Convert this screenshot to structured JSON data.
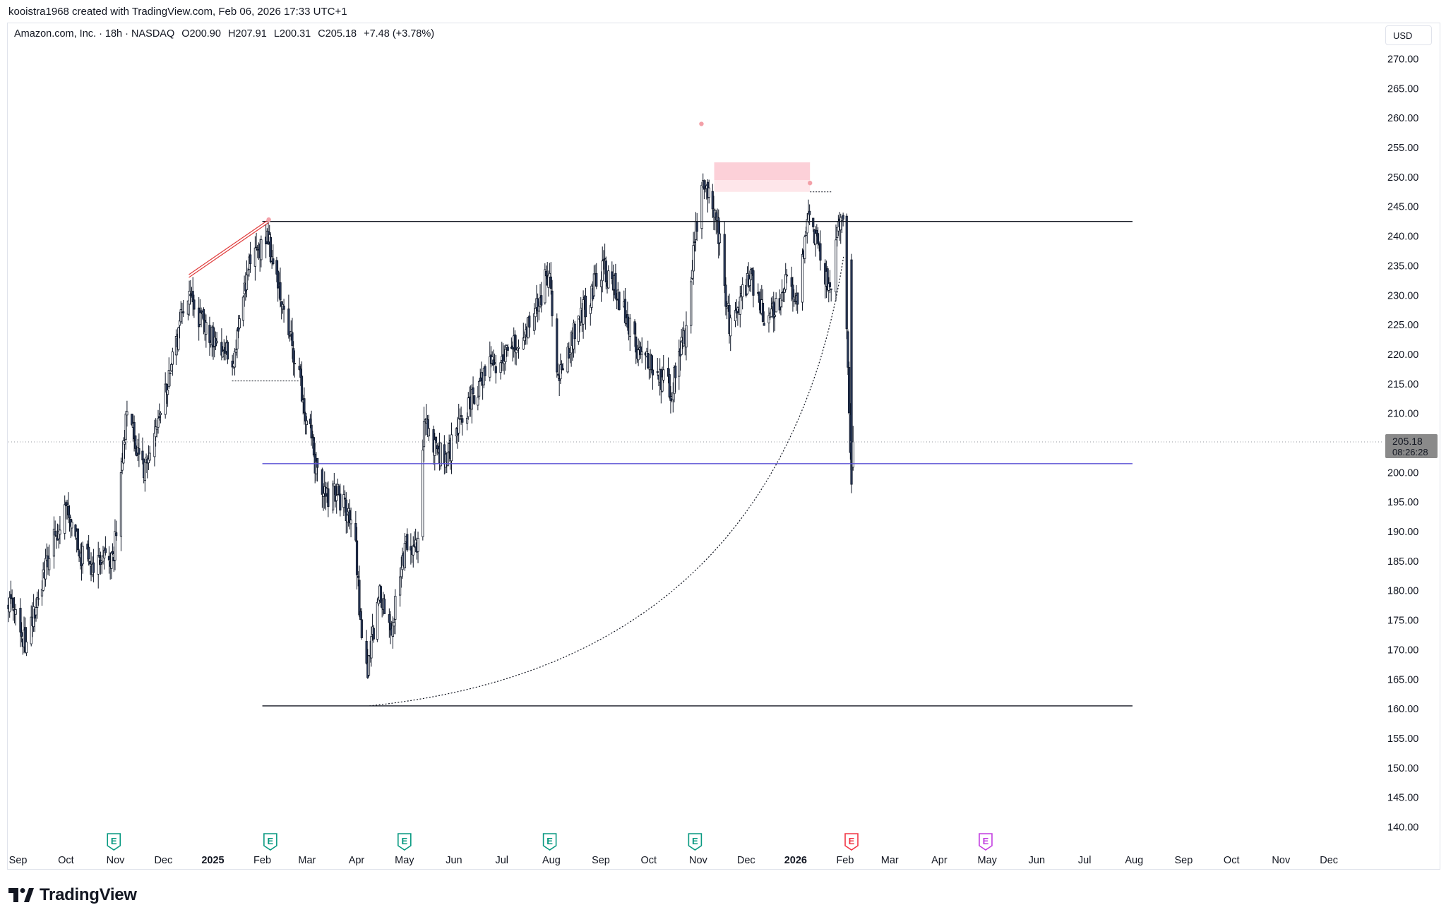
{
  "header": {
    "attribution": "kooistra1968 created with TradingView.com, Feb 06, 2026 17:33 UTC+1"
  },
  "legend": {
    "symbol": "Amazon.com, Inc. · 18h · NASDAQ",
    "open": "O200.90",
    "high": "H207.91",
    "low": "L200.31",
    "close": "C205.18",
    "change": "+7.48 (+3.78%)"
  },
  "currency_label": "USD",
  "price_badge": {
    "price": "205.18",
    "countdown": "08:26:28"
  },
  "brand": {
    "name": "TradingView"
  },
  "colors": {
    "up_candle": "#ffffff",
    "down_candle": "#2a3a5c",
    "candle_outline": "#0e1626",
    "level_line": "#131722",
    "support_line": "#5b52d6",
    "pivot_marker": "#f3a0a8",
    "zone_fill": "#fcc8d1",
    "earnings_past": "#089981",
    "earnings_next": "#f23645",
    "earnings_future": "#c33ee0",
    "badge_bg": "#8a8a8a"
  },
  "chart_data": {
    "type": "candlestick",
    "title": "",
    "xlabel": "",
    "ylabel": "",
    "ylim": [
      136,
      274
    ],
    "y_ticks": [
      "140.00",
      "145.00",
      "150.00",
      "155.00",
      "160.00",
      "165.00",
      "170.00",
      "175.00",
      "180.00",
      "185.00",
      "190.00",
      "195.00",
      "200.00",
      "205.00",
      "210.00",
      "215.00",
      "220.00",
      "225.00",
      "230.00",
      "235.00",
      "240.00",
      "245.00",
      "250.00",
      "255.00",
      "260.00",
      "265.00",
      "270.00"
    ],
    "x_ticks": [
      "Sep",
      "Oct",
      "Nov",
      "Dec",
      "2025",
      "Feb",
      "Mar",
      "Apr",
      "May",
      "Jun",
      "Jul",
      "Aug",
      "Sep",
      "Oct",
      "Nov",
      "Dec",
      "2026",
      "Feb",
      "Mar",
      "Apr",
      "May",
      "Jun",
      "Jul",
      "Aug",
      "Sep",
      "Oct",
      "Nov",
      "Dec"
    ],
    "bold_x_ticks": [
      "2025",
      "2026"
    ],
    "date_range": [
      "2024-08-26",
      "2026-12-31"
    ],
    "price_path": [
      [
        "2024-08-26",
        178
      ],
      [
        "2024-09-06",
        171
      ],
      [
        "2024-09-20",
        186
      ],
      [
        "2024-10-01",
        194
      ],
      [
        "2024-10-10",
        186
      ],
      [
        "2024-10-21",
        184
      ],
      [
        "2024-10-31",
        186
      ],
      [
        "2024-11-08",
        210
      ],
      [
        "2024-11-19",
        200
      ],
      [
        "2024-12-03",
        214
      ],
      [
        "2024-12-16",
        231
      ],
      [
        "2024-12-26",
        225
      ],
      [
        "2025-01-03",
        222
      ],
      [
        "2025-01-13",
        219
      ],
      [
        "2025-01-24",
        235
      ],
      [
        "2025-02-04",
        240
      ],
      [
        "2025-02-14",
        228
      ],
      [
        "2025-02-27",
        212
      ],
      [
        "2025-03-10",
        196
      ],
      [
        "2025-03-21",
        196
      ],
      [
        "2025-03-31",
        190
      ],
      [
        "2025-04-04",
        172
      ],
      [
        "2025-04-08",
        166
      ],
      [
        "2025-04-15",
        180
      ],
      [
        "2025-04-23",
        174
      ],
      [
        "2025-05-02",
        188
      ],
      [
        "2025-05-09",
        188
      ],
      [
        "2025-05-13",
        208
      ],
      [
        "2025-05-26",
        202
      ],
      [
        "2025-06-11",
        212
      ],
      [
        "2025-06-24",
        218
      ],
      [
        "2025-07-08",
        222
      ],
      [
        "2025-07-21",
        226
      ],
      [
        "2025-07-31",
        235
      ],
      [
        "2025-08-04",
        215
      ],
      [
        "2025-08-13",
        222
      ],
      [
        "2025-08-22",
        228
      ],
      [
        "2025-09-02",
        235
      ],
      [
        "2025-09-12",
        230
      ],
      [
        "2025-09-22",
        222
      ],
      [
        "2025-10-03",
        218
      ],
      [
        "2025-10-15",
        214
      ],
      [
        "2025-10-24",
        224
      ],
      [
        "2025-11-03",
        250
      ],
      [
        "2025-11-12",
        244
      ],
      [
        "2025-11-21",
        224
      ],
      [
        "2025-12-03",
        233
      ],
      [
        "2025-12-15",
        225
      ],
      [
        "2025-12-26",
        232
      ],
      [
        "2026-01-02",
        228
      ],
      [
        "2026-01-09",
        244
      ],
      [
        "2026-01-16",
        238
      ],
      [
        "2026-01-22",
        230
      ],
      [
        "2026-01-27",
        240
      ],
      [
        "2026-01-31",
        242
      ],
      [
        "2026-02-05",
        199
      ],
      [
        "2026-02-06",
        205.18
      ]
    ],
    "last_candle": {
      "open": 200.9,
      "high": 207.91,
      "low": 200.31,
      "close": 205.18
    },
    "horizontal_levels": [
      {
        "price": 242.5,
        "from": "2025-02-01",
        "to": "2026-07-31",
        "style": "solid"
      },
      {
        "price": 160.5,
        "from": "2025-02-01",
        "to": "2026-07-31",
        "style": "solid"
      },
      {
        "price": 201.5,
        "from": "2025-02-01",
        "to": "2026-07-31",
        "style": "support"
      },
      {
        "price": 205.18,
        "style": "dotted-last-price"
      }
    ],
    "pivots": [
      {
        "date": "2025-02-05",
        "price": 242.8
      },
      {
        "date": "2025-11-03",
        "price": 259
      },
      {
        "date": "2026-01-10",
        "price": 249
      }
    ],
    "zone": {
      "from": "2025-11-11",
      "to": "2026-01-10",
      "top": 252.5,
      "mid": 249.5,
      "bottom": 247.5
    },
    "earnings_markers": [
      {
        "date": "2024-10-31",
        "label": "E",
        "kind": "past"
      },
      {
        "date": "2025-02-06",
        "label": "E",
        "kind": "past"
      },
      {
        "date": "2025-05-01",
        "label": "E",
        "kind": "past"
      },
      {
        "date": "2025-07-31",
        "label": "E",
        "kind": "past"
      },
      {
        "date": "2025-10-30",
        "label": "E",
        "kind": "past"
      },
      {
        "date": "2026-02-05",
        "label": "E",
        "kind": "next"
      },
      {
        "date": "2026-04-30",
        "label": "E",
        "kind": "future"
      }
    ],
    "curve": {
      "from": {
        "date": "2025-04-09",
        "price": 160.5
      },
      "to": {
        "date": "2026-01-31",
        "price": 236.5
      }
    },
    "channel": [
      {
        "from": {
          "date": "2024-12-17",
          "price": 233.5
        },
        "to": {
          "date": "2025-02-05",
          "price": 242.8
        }
      }
    ],
    "dotted_brackets": [
      {
        "from": "2025-01-13",
        "to": "2025-02-24",
        "price": 215.5
      },
      {
        "from": "2026-01-10",
        "to": "2026-01-24",
        "price": 247.5
      }
    ],
    "grid": false,
    "legend_position": "top-left"
  }
}
